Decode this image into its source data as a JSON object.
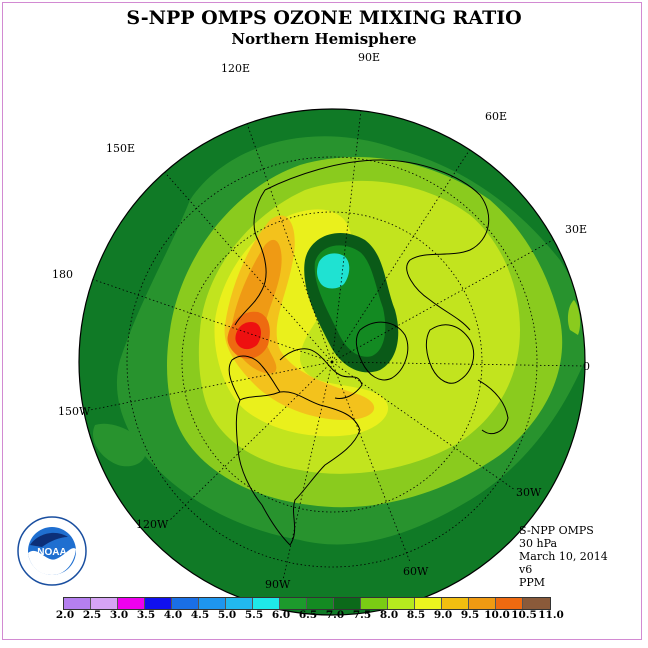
{
  "title": "S-NPP OMPS OZONE MIXING RATIO",
  "subtitle": "Northern Hemisphere",
  "longitude_labels": [
    "90E",
    "60E",
    "30E",
    "0",
    "30W",
    "60W",
    "90W",
    "120W",
    "150W",
    "180",
    "150E",
    "120E"
  ],
  "info": {
    "instrument": "S-NPP OMPS",
    "level": "30 hPa",
    "date": "March 10, 2014",
    "version": "v6",
    "units": "PPM"
  },
  "logo": {
    "text": "NOAA",
    "ring_text": "NATIONAL OCEANIC AND ATMOSPHERIC ADMINISTRATION · U.S. DEPARTMENT OF COMMERCE"
  },
  "colorbar": {
    "ticks": [
      "2.0",
      "2.5",
      "3.0",
      "3.5",
      "4.0",
      "4.5",
      "5.0",
      "5.5",
      "6.0",
      "6.5",
      "7.0",
      "7.5",
      "8.0",
      "8.5",
      "9.0",
      "9.5",
      "10.0",
      "10.5",
      "11.0"
    ],
    "colors": [
      "#b57ff0",
      "#d6a4f5",
      "#ee00ee",
      "#1010ee",
      "#1a6fe6",
      "#1e96ee",
      "#22b8ee",
      "#1fe8e8",
      "#1c9a2c",
      "#138a22",
      "#0b6a1a",
      "#7acc14",
      "#b6ea1e",
      "#ecf41e",
      "#f2be10",
      "#f09a12",
      "#ee6a10",
      "#ee1010",
      "#8a5a3a"
    ]
  },
  "map_colors": {
    "c6_5": "#107a26",
    "c7_0": "#28932e",
    "c7_5": "#8acb1e",
    "c8_0": "#c2e41e",
    "c8_5": "#eaf01c",
    "c9_0": "#f3c21c",
    "c9_5": "#ef9a14",
    "c10": "#ee6a10",
    "c10_5": "#ee1010",
    "low": "#0a5a18",
    "low2": "#1fe2d2"
  }
}
